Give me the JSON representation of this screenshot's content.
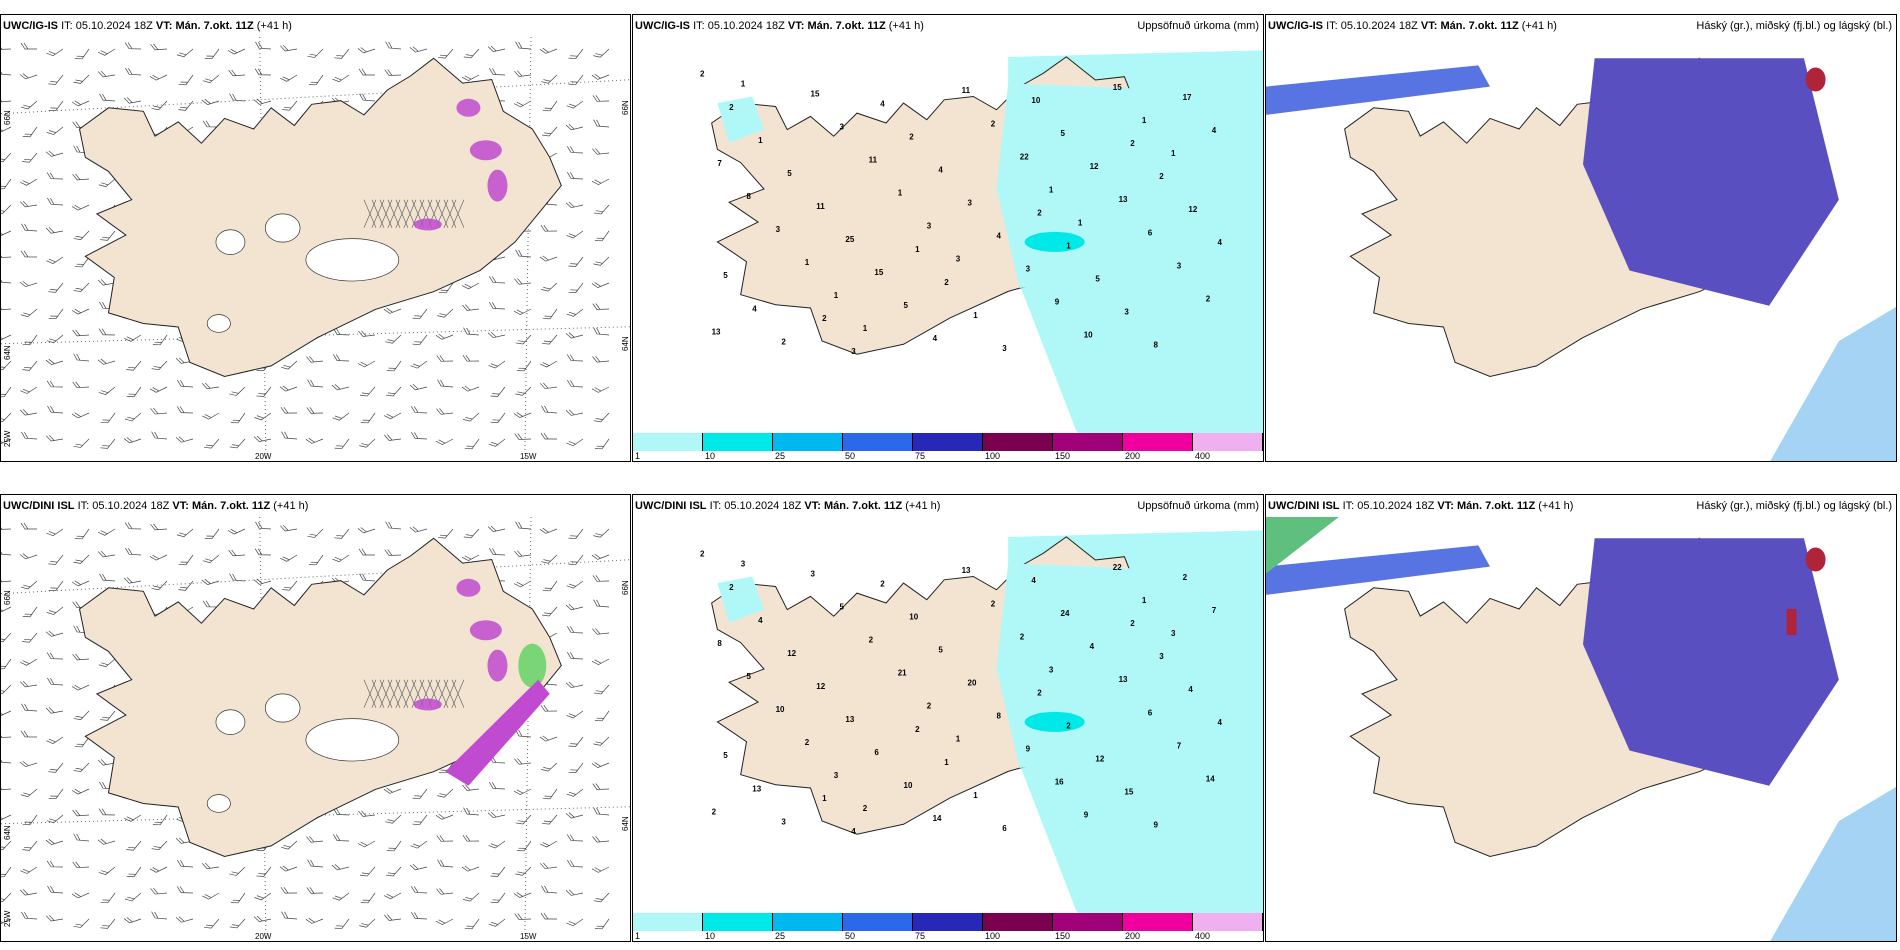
{
  "rows": [
    {
      "model": "UWC/IG-IS",
      "it_label": "IT:",
      "it_value": "05.10.2024 18Z",
      "vt_label": "VT:",
      "vt_value": "Mán. 7.okt. 11Z",
      "lead": "(+41 h)"
    },
    {
      "model": "UWC/DINI ISL",
      "it_label": "IT:",
      "it_value": "05.10.2024 18Z",
      "vt_label": "VT:",
      "vt_value": "Mán. 7.okt. 11Z",
      "lead": "(+41 h)"
    }
  ],
  "precip_title": "Uppsöfnuð úrkoma (mm)",
  "cloud_title": "Háský (gr.), miðský (fj.bl.) og lágský (bl.)",
  "colorbar": {
    "labels": [
      "1",
      "10",
      "25",
      "50",
      "75",
      "100",
      "150",
      "200",
      "400"
    ],
    "colors": [
      "#b0f8f8",
      "#00e8e8",
      "#00b8f0",
      "#2a6aea",
      "#2828b8",
      "#7a0050",
      "#a0007a",
      "#f000a0",
      "#f0b0f0"
    ]
  },
  "axes": {
    "lon": [
      "20W",
      "15W"
    ],
    "lat_top": "66N",
    "lat_mid": "64N",
    "lat_bottom": "25W",
    "lat_right_top": "66N",
    "lat_right_mid": "64N"
  },
  "precip_values_top": [
    "2",
    "1",
    "2",
    "2",
    "2",
    "2",
    "2",
    "2",
    "3",
    "1",
    "1",
    "1",
    "12",
    "4",
    "5",
    "5",
    "3",
    "4",
    "2",
    "3",
    "11",
    "10",
    "5",
    "4",
    "8",
    "25",
    "5",
    "4",
    "3",
    "17",
    "15",
    "12",
    "2",
    "4",
    "4",
    "5",
    "13",
    "15",
    "3",
    "7",
    "4",
    "6",
    "3",
    "9",
    "8",
    "11",
    "3",
    "11",
    "10",
    "3",
    "2",
    "2",
    "1",
    "15",
    "1",
    "22",
    "13",
    "3",
    "1",
    "1",
    "1",
    "1",
    "3",
    "1",
    "1",
    "1"
  ],
  "precip_values_bottom": [
    "2",
    "2",
    "2",
    "1",
    "2",
    "2",
    "1",
    "3",
    "4",
    "2",
    "4",
    "1",
    "4",
    "2",
    "12",
    "12",
    "6",
    "4",
    "10",
    "15",
    "12",
    "4",
    "5",
    "5",
    "9",
    "13",
    "24",
    "13",
    "20",
    "2",
    "6",
    "4",
    "3",
    "8",
    "7",
    "10",
    "13",
    "3",
    "9",
    "8",
    "14",
    "6",
    "5",
    "16",
    "5",
    "13",
    "7",
    "2",
    "9",
    "10",
    "2",
    "14",
    "21",
    "22",
    "2",
    "2",
    "2",
    "2",
    "1",
    "3",
    "3",
    "3",
    "1",
    "3",
    "2"
  ],
  "colors": {
    "land": "#f3e4d2",
    "precip_light": "#b0f8f8",
    "precip_mid": "#00e8e8",
    "cloud_high": "#5a4fc0",
    "cloud_mid": "#3b5bdd",
    "cloud_low": "#8ec8f0",
    "cloud_red": "#b0243a",
    "icing_pink": "#c04bd0",
    "icing_green": "#6cd36c"
  }
}
